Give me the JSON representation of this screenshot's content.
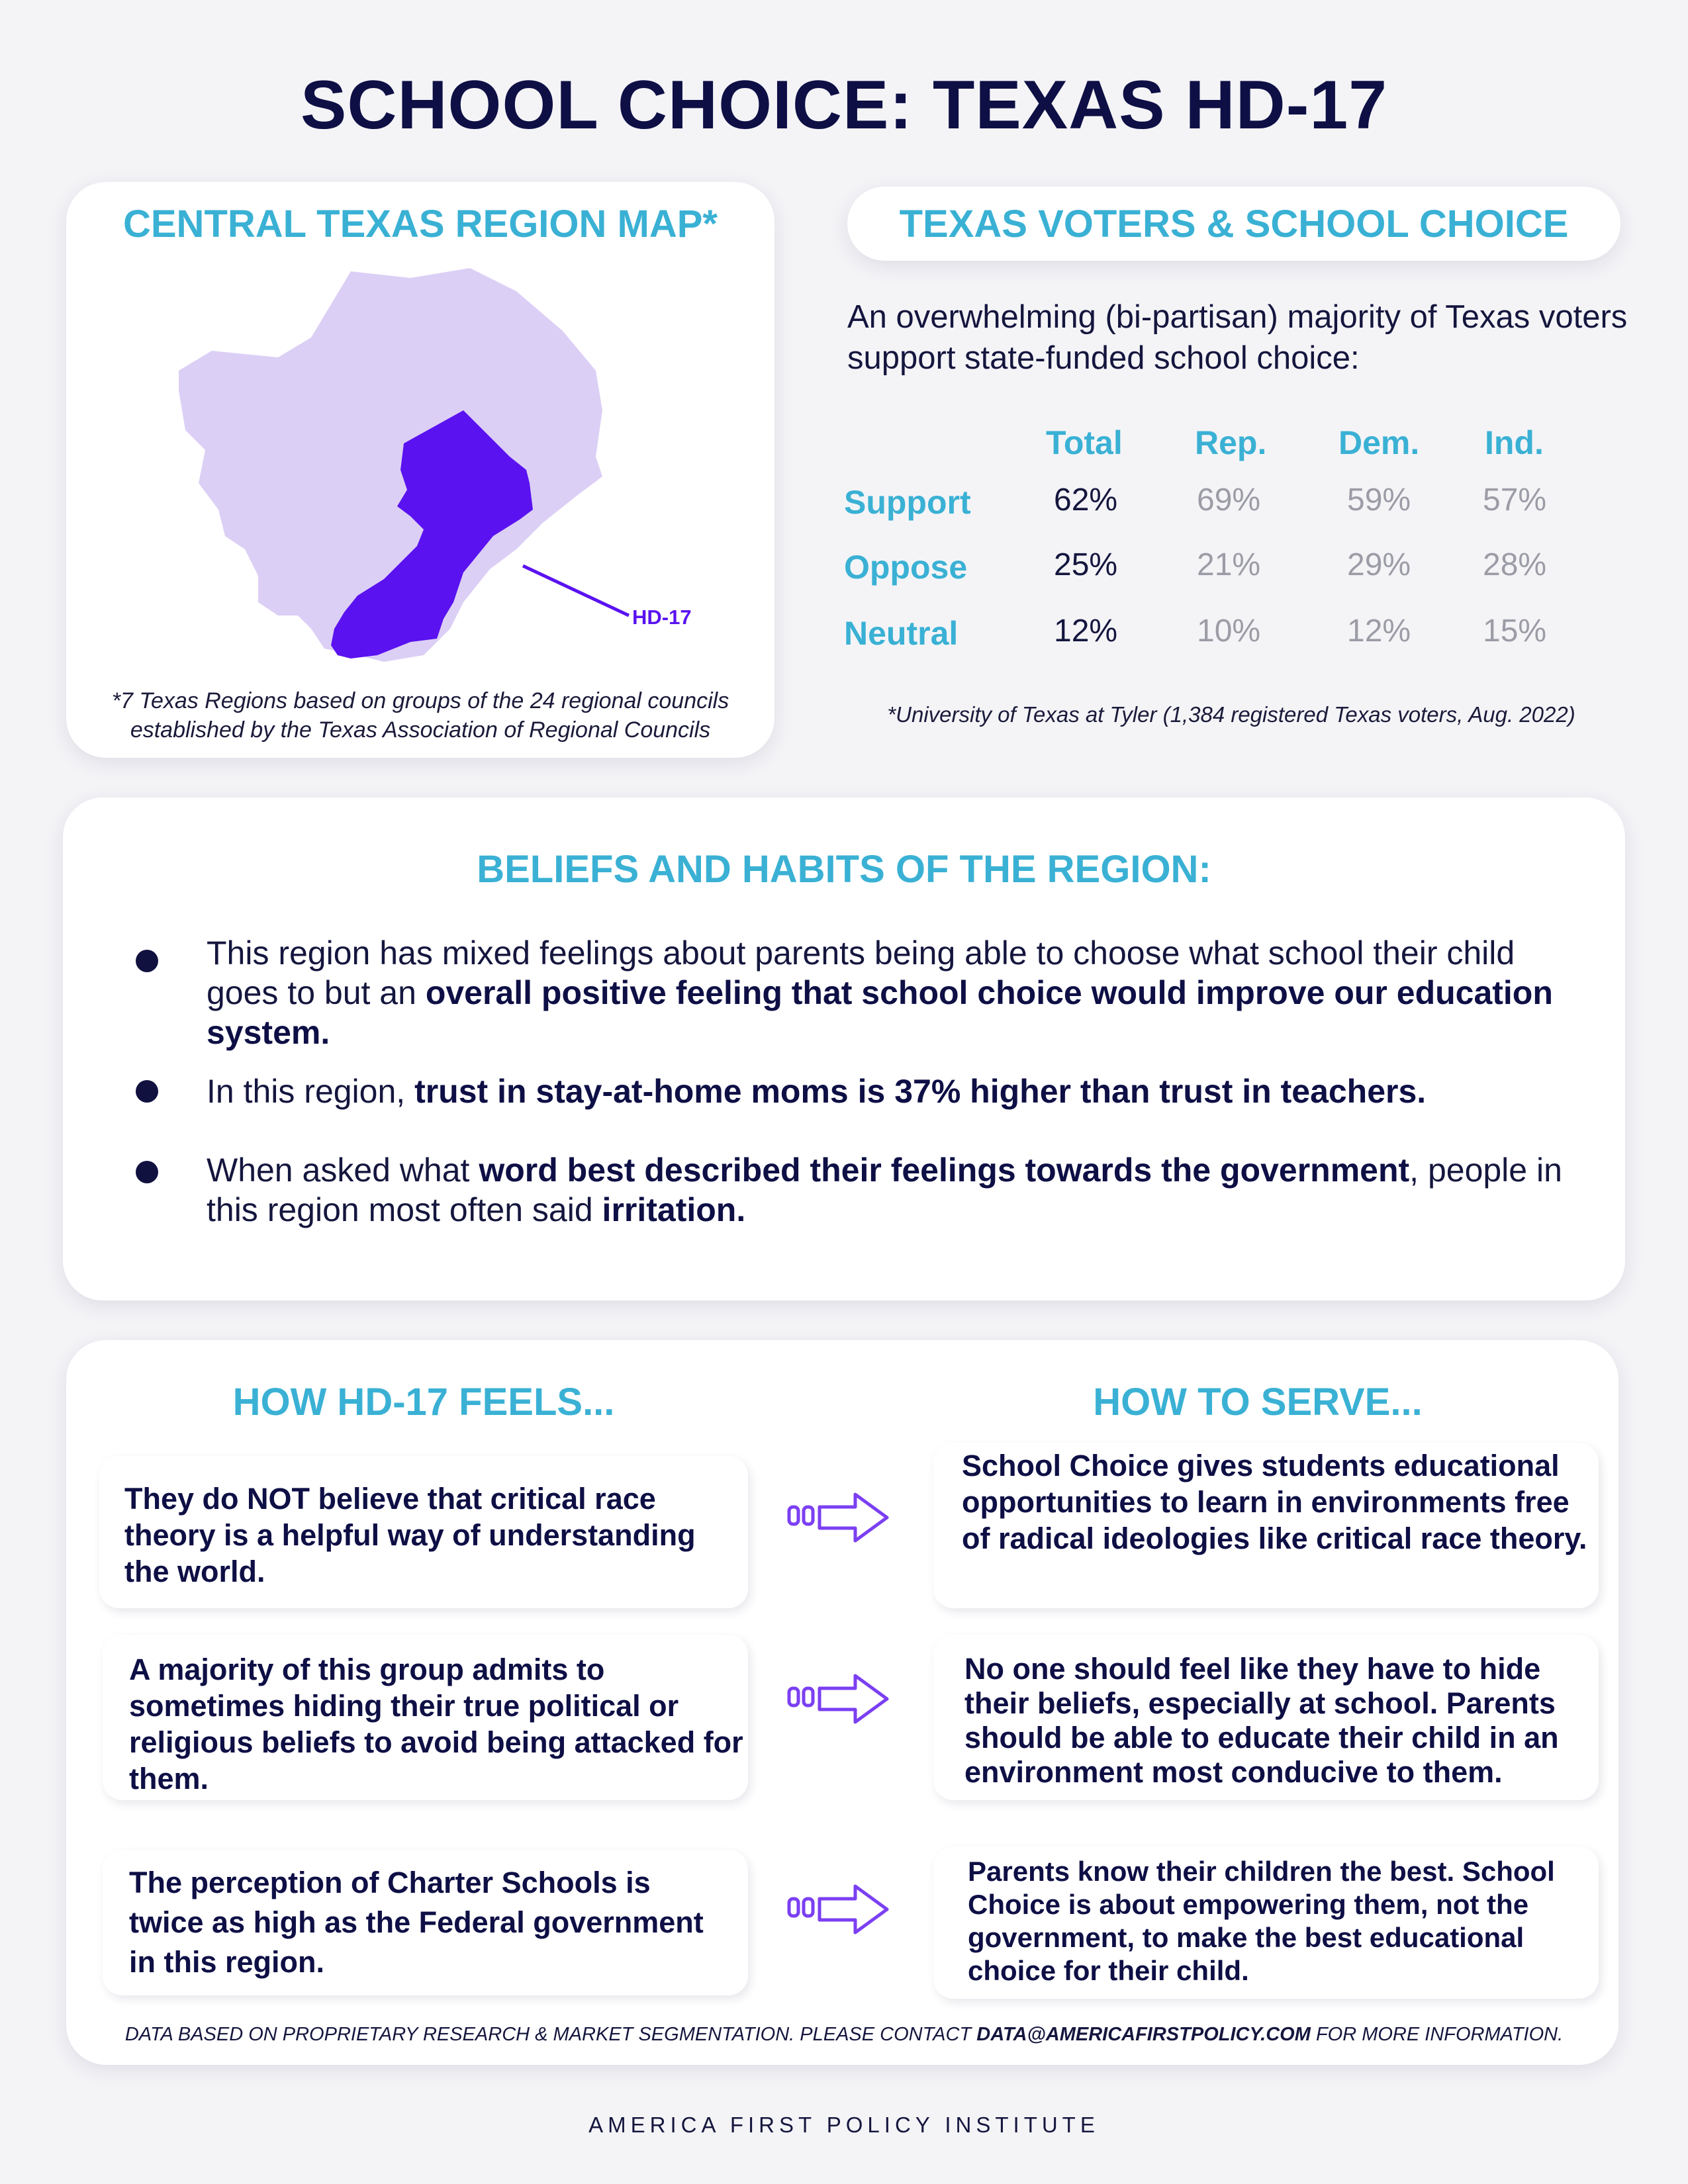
{
  "title": "SCHOOL CHOICE: TEXAS HD-17",
  "map_card": {
    "heading": "CENTRAL TEXAS REGION MAP*",
    "district_label": "HD-17",
    "note_line1": "*7 Texas Regions based on groups of the 24 regional councils",
    "note_line2": "established by the Texas Association of Regional Councils",
    "colors": {
      "region": "#dccff5",
      "district": "#5a12f0"
    }
  },
  "voters_card": {
    "heading": "TEXAS VOTERS & SCHOOL CHOICE",
    "intro": "An overwhelming (bi-partisan) majority of Texas voters support state-funded school choice:",
    "columns": [
      "Total",
      "Rep.",
      "Dem.",
      "Ind."
    ],
    "rows": [
      {
        "label": "Support",
        "values": [
          "62%",
          "69%",
          "59%",
          "57%"
        ]
      },
      {
        "label": "Oppose",
        "values": [
          "25%",
          "21%",
          "29%",
          "28%"
        ]
      },
      {
        "label": "Neutral",
        "values": [
          "12%",
          "10%",
          "12%",
          "15%"
        ]
      }
    ],
    "source": "*University of Texas at Tyler (1,384 registered Texas voters, Aug. 2022)"
  },
  "beliefs": {
    "heading": "BELIEFS AND HABITS OF THE REGION:",
    "b1_pre": "This region has mixed feelings about parents being able to choose what school their child goes to but an ",
    "b1_bold": "overall positive feeling that school choice would improve our education system.",
    "b2_pre": "In this region, ",
    "b2_bold": "trust in stay-at-home moms is 37% higher than trust in teachers.",
    "b3_pre": "When asked what ",
    "b3_bold": "word best described their feelings towards the government",
    "b3_mid": ", people in this region most often said ",
    "b3_bold2": "irritation."
  },
  "feels": {
    "left_heading": "HOW HD-17 FEELS...",
    "right_heading": "HOW TO SERVE...",
    "pairs": [
      {
        "feel": "They do NOT believe that critical race theory is a helpful way of understanding the world.",
        "serve": "School Choice gives students educational opportunities to learn in environments free of radical ideologies like critical race theory."
      },
      {
        "feel": "A majority of this group admits to sometimes hiding their true political or religious beliefs to avoid being attacked for them.",
        "serve": "No one should feel like they have to hide their beliefs, especially at school. Parents should be able to educate their child in an environment most conducive to them."
      },
      {
        "feel": "The perception of Charter Schools is twice as high as the Federal government in this region.",
        "serve": "Parents know their children the best. School Choice is about empowering them, not the government, to make the best educational choice for their child."
      }
    ],
    "arrow_icon": "arrow-right-icon"
  },
  "footer": {
    "note_pre": "DATA BASED ON PROPRIETARY RESEARCH & MARKET SEGMENTATION. PLEASE CONTACT ",
    "email": "DATA@AMERICAFIRSTPOLICY.COM",
    "note_post": " FOR MORE INFORMATION.",
    "org": "AMERICA FIRST POLICY INSTITUTE"
  }
}
